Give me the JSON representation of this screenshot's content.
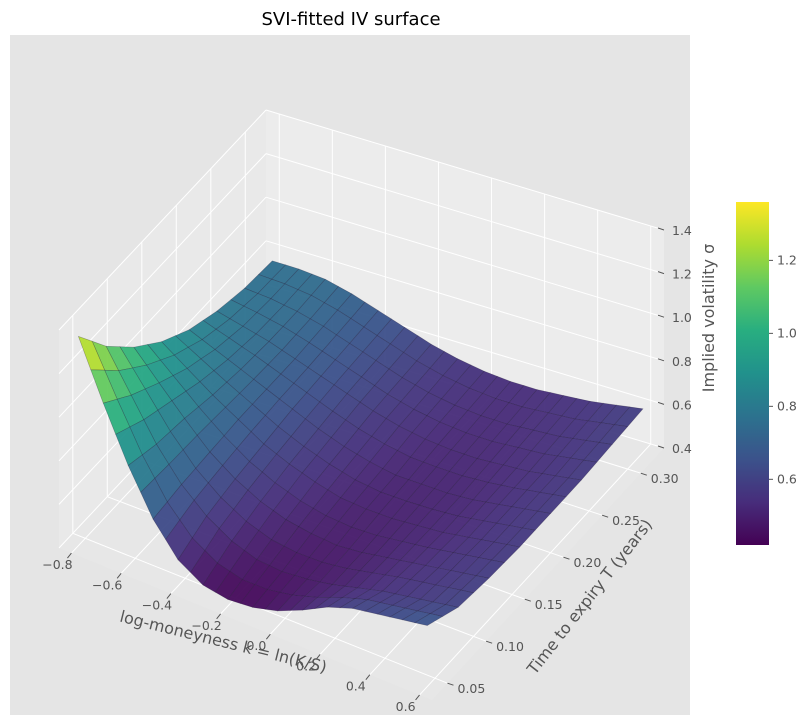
{
  "chart_data": {
    "type": "surface3d",
    "title": "SVI-fitted IV surface",
    "xlabel": "log-moneyness  k = ln(K/S)",
    "ylabel": "Time to expiry  T  (years)",
    "zlabel": "Implied volatility σ",
    "x_ticks": [
      -0.8,
      -0.6,
      -0.4,
      -0.2,
      0.0,
      0.2,
      0.4,
      0.6
    ],
    "x_tick_labels": [
      "−0.8",
      "−0.6",
      "−0.4",
      "−0.2",
      "0.0",
      "0.2",
      "0.4",
      "0.6"
    ],
    "y_ticks": [
      0.05,
      0.1,
      0.15,
      0.2,
      0.25,
      0.3
    ],
    "y_tick_labels": [
      "0.05",
      "0.10",
      "0.15",
      "0.20",
      "0.25",
      "0.30"
    ],
    "z_ticks": [
      0.4,
      0.6,
      0.8,
      1.0,
      1.2,
      1.4
    ],
    "z_tick_labels": [
      "0.4",
      "0.6",
      "0.8",
      "1.0",
      "1.2",
      "1.4"
    ],
    "xlim": [
      -0.85,
      0.65
    ],
    "ylim": [
      0.03,
      0.33
    ],
    "zlim": [
      0.4,
      1.4
    ],
    "colormap": "viridis",
    "colorbar": {
      "range": [
        0.42,
        1.36
      ],
      "ticks": [
        0.6,
        0.8,
        1.0,
        1.2
      ],
      "tick_labels": [
        "0.6",
        "0.8",
        "1.0",
        "1.2"
      ]
    },
    "grid": true,
    "surface": {
      "k": [
        -0.8,
        -0.7,
        -0.6,
        -0.5,
        -0.4,
        -0.3,
        -0.2,
        -0.1,
        0.0,
        0.1,
        0.2,
        0.3,
        0.4,
        0.5,
        0.6
      ],
      "T": [
        0.04,
        0.08,
        0.12,
        0.16,
        0.2,
        0.24,
        0.28,
        0.32
      ],
      "sigma": [
        [
          1.36,
          1.1,
          0.86,
          0.66,
          0.52,
          0.45,
          0.43,
          0.44,
          0.47,
          0.52,
          0.58,
          0.62,
          0.64,
          0.66,
          0.68
        ],
        [
          1.18,
          1.0,
          0.82,
          0.68,
          0.58,
          0.51,
          0.47,
          0.46,
          0.47,
          0.49,
          0.52,
          0.55,
          0.57,
          0.59,
          0.61
        ],
        [
          1.04,
          0.92,
          0.8,
          0.69,
          0.61,
          0.55,
          0.51,
          0.49,
          0.48,
          0.49,
          0.51,
          0.53,
          0.55,
          0.57,
          0.59
        ],
        [
          0.93,
          0.85,
          0.77,
          0.7,
          0.63,
          0.58,
          0.54,
          0.51,
          0.5,
          0.5,
          0.51,
          0.52,
          0.54,
          0.56,
          0.58
        ],
        [
          0.85,
          0.8,
          0.75,
          0.7,
          0.65,
          0.6,
          0.56,
          0.53,
          0.51,
          0.51,
          0.51,
          0.52,
          0.54,
          0.56,
          0.58
        ],
        [
          0.8,
          0.77,
          0.74,
          0.7,
          0.66,
          0.62,
          0.58,
          0.55,
          0.53,
          0.52,
          0.52,
          0.53,
          0.54,
          0.56,
          0.58
        ],
        [
          0.77,
          0.76,
          0.74,
          0.71,
          0.67,
          0.63,
          0.59,
          0.56,
          0.54,
          0.53,
          0.53,
          0.54,
          0.55,
          0.57,
          0.59
        ],
        [
          0.76,
          0.76,
          0.75,
          0.72,
          0.68,
          0.64,
          0.6,
          0.57,
          0.55,
          0.54,
          0.54,
          0.55,
          0.56,
          0.58,
          0.6
        ]
      ]
    }
  }
}
